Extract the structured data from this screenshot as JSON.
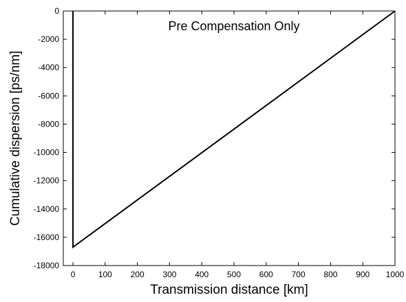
{
  "chart_data": {
    "type": "line",
    "title": "",
    "annotation": "Pre Compensation Only",
    "xlabel": "Transmission distance [km]",
    "ylabel": "Cumulative dispersion [ps/nm]",
    "xlim": [
      -30,
      1000
    ],
    "ylim": [
      -18000,
      0
    ],
    "xticks": [
      0,
      100,
      200,
      300,
      400,
      500,
      600,
      700,
      800,
      900,
      1000
    ],
    "yticks": [
      0,
      -2000,
      -4000,
      -6000,
      -8000,
      -10000,
      -12000,
      -14000,
      -16000,
      -18000
    ],
    "grid": false,
    "legend": "none",
    "series": [
      {
        "color": "#000000",
        "x": [
          0,
          0,
          1000
        ],
        "y": [
          0,
          -16700,
          0
        ]
      }
    ]
  }
}
